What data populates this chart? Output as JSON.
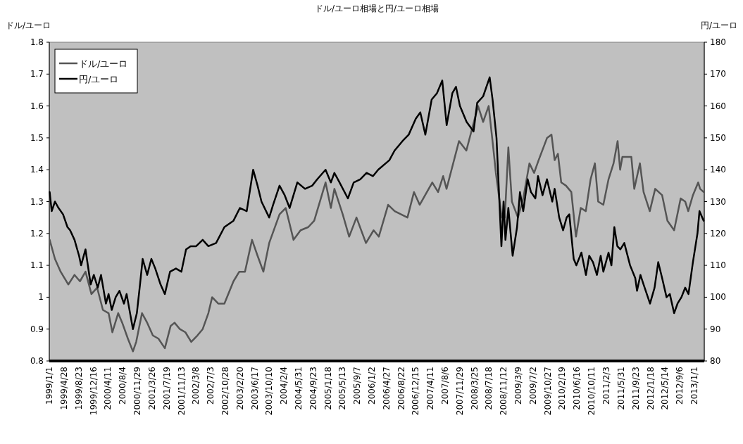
{
  "chart_data": {
    "type": "line",
    "title": "ドル/ユーロ相場と円/ユーロ相場",
    "ylabel": "ドル/ユーロ",
    "y2label": "円/ユーロ",
    "legend": "top left",
    "xlim": [
      "1999-01-01",
      "2013-03-20"
    ],
    "xticks": [
      {
        "value": "1999-01-01",
        "label": "1999/1/1"
      },
      {
        "value": "1999-04-28",
        "label": "1999/4/28"
      },
      {
        "value": "1999-08-23",
        "label": "1999/8/23"
      },
      {
        "value": "1999-12-16",
        "label": "1999/12/16"
      },
      {
        "value": "2000-04-11",
        "label": "2000/4/11"
      },
      {
        "value": "2000-08-04",
        "label": "2000/8/4"
      },
      {
        "value": "2000-11-29",
        "label": "2000/11/29"
      },
      {
        "value": "2001-03-26",
        "label": "2001/3/26"
      },
      {
        "value": "2001-07-19",
        "label": "2001/7/19"
      },
      {
        "value": "2001-11-13",
        "label": "2001/11/13"
      },
      {
        "value": "2002-03-08",
        "label": "2002/3/8"
      },
      {
        "value": "2002-07-03",
        "label": "2002/7/3"
      },
      {
        "value": "2002-10-28",
        "label": "2002/10/28"
      },
      {
        "value": "2003-02-20",
        "label": "2003/2/20"
      },
      {
        "value": "2003-06-17",
        "label": "2003/6/17"
      },
      {
        "value": "2003-10-10",
        "label": "2003/10/10"
      },
      {
        "value": "2004-02-04",
        "label": "2004/2/4"
      },
      {
        "value": "2004-05-31",
        "label": "2004/5/31"
      },
      {
        "value": "2004-09-23",
        "label": "2004/9/23"
      },
      {
        "value": "2005-01-18",
        "label": "2005/1/18"
      },
      {
        "value": "2005-05-13",
        "label": "2005/5/13"
      },
      {
        "value": "2005-09-07",
        "label": "2005/9/7"
      },
      {
        "value": "2006-01-02",
        "label": "2006/1/2"
      },
      {
        "value": "2006-04-27",
        "label": "2006/4/27"
      },
      {
        "value": "2006-08-22",
        "label": "2006/8/22"
      },
      {
        "value": "2006-12-15",
        "label": "2006/12/15"
      },
      {
        "value": "2007-04-11",
        "label": "2007/4/11"
      },
      {
        "value": "2007-08-06",
        "label": "2007/8/6"
      },
      {
        "value": "2007-11-29",
        "label": "2007/11/29"
      },
      {
        "value": "2008-03-25",
        "label": "2008/3/25"
      },
      {
        "value": "2008-07-18",
        "label": "2008/7/18"
      },
      {
        "value": "2008-11-12",
        "label": "2008/11/12"
      },
      {
        "value": "2009-03-09",
        "label": "2009/3/9"
      },
      {
        "value": "2009-07-02",
        "label": "2009/7/2"
      },
      {
        "value": "2009-10-27",
        "label": "2009/10/27"
      },
      {
        "value": "2010-02-19",
        "label": "2010/2/19"
      },
      {
        "value": "2010-06-16",
        "label": "2010/6/16"
      },
      {
        "value": "2010-10-11",
        "label": "2010/10/11"
      },
      {
        "value": "2011-02-03",
        "label": "2011/2/3"
      },
      {
        "value": "2011-05-31",
        "label": "2011/5/31"
      },
      {
        "value": "2011-09-23",
        "label": "2011/9/23"
      },
      {
        "value": "2012-01-18",
        "label": "2012/1/18"
      },
      {
        "value": "2012-05-14",
        "label": "2012/5/14"
      },
      {
        "value": "2012-09-06",
        "label": "2012/9/6"
      },
      {
        "value": "2013-01-01",
        "label": "2013/1/1"
      }
    ],
    "ylim": [
      0.8,
      1.8
    ],
    "yticks": [
      0.8,
      0.9,
      1,
      1.1,
      1.2,
      1.3,
      1.4,
      1.5,
      1.6,
      1.7,
      1.8
    ],
    "y2lim": [
      80,
      180
    ],
    "y2ticks": [
      80,
      90,
      100,
      110,
      120,
      130,
      140,
      150,
      160,
      170,
      180
    ],
    "series": [
      {
        "name": "ドル/ユーロ",
        "color": "#555555",
        "x": [
          "1999-01-04",
          "1999-02-15",
          "1999-04-01",
          "1999-06-01",
          "1999-07-20",
          "1999-09-01",
          "1999-10-15",
          "1999-12-01",
          "2000-01-15",
          "2000-03-01",
          "2000-04-15",
          "2000-05-15",
          "2000-06-30",
          "2000-08-01",
          "2000-09-15",
          "2000-10-25",
          "2000-11-20",
          "2001-01-05",
          "2001-02-15",
          "2001-04-01",
          "2001-05-15",
          "2001-07-05",
          "2001-08-20",
          "2001-09-20",
          "2001-11-01",
          "2001-12-15",
          "2002-01-30",
          "2002-03-20",
          "2002-05-01",
          "2002-06-15",
          "2002-07-15",
          "2002-09-01",
          "2002-10-20",
          "2002-12-31",
          "2003-02-15",
          "2003-04-01",
          "2003-05-27",
          "2003-07-10",
          "2003-08-25",
          "2003-10-10",
          "2003-12-31",
          "2004-02-18",
          "2004-04-20",
          "2004-06-15",
          "2004-08-15",
          "2004-10-01",
          "2004-12-30",
          "2005-02-10",
          "2005-03-10",
          "2005-05-15",
          "2005-07-05",
          "2005-09-01",
          "2005-11-15",
          "2006-01-15",
          "2006-02-25",
          "2006-05-10",
          "2006-07-01",
          "2006-10-10",
          "2006-12-01",
          "2007-01-15",
          "2007-04-25",
          "2007-06-10",
          "2007-07-20",
          "2007-08-16",
          "2007-11-23",
          "2008-01-20",
          "2008-04-22",
          "2008-06-01",
          "2008-07-15",
          "2008-08-20",
          "2008-09-10",
          "2008-10-27",
          "2008-11-20",
          "2008-12-18",
          "2009-01-15",
          "2009-03-04",
          "2009-04-15",
          "2009-06-03",
          "2009-07-10",
          "2009-08-15",
          "2009-10-21",
          "2009-11-25",
          "2009-12-20",
          "2010-01-15",
          "2010-02-10",
          "2010-03-20",
          "2010-05-01",
          "2010-06-07",
          "2010-07-15",
          "2010-08-24",
          "2010-10-01",
          "2010-11-04",
          "2010-11-30",
          "2011-01-10",
          "2011-02-20",
          "2011-04-01",
          "2011-05-03",
          "2011-05-23",
          "2011-06-10",
          "2011-07-05",
          "2011-08-20",
          "2011-09-12",
          "2011-10-27",
          "2011-11-25",
          "2012-01-13",
          "2012-02-25",
          "2012-04-20",
          "2012-06-01",
          "2012-07-24",
          "2012-09-14",
          "2012-10-20",
          "2012-11-13",
          "2012-12-20",
          "2013-01-31",
          "2013-02-15",
          "2013-03-15"
        ],
        "values": [
          1.18,
          1.12,
          1.08,
          1.04,
          1.07,
          1.05,
          1.08,
          1.01,
          1.03,
          0.96,
          0.95,
          0.89,
          0.95,
          0.92,
          0.87,
          0.83,
          0.86,
          0.95,
          0.92,
          0.88,
          0.87,
          0.84,
          0.91,
          0.92,
          0.9,
          0.89,
          0.86,
          0.88,
          0.9,
          0.95,
          1.0,
          0.98,
          0.98,
          1.05,
          1.08,
          1.08,
          1.18,
          1.13,
          1.08,
          1.17,
          1.26,
          1.28,
          1.18,
          1.21,
          1.22,
          1.24,
          1.36,
          1.28,
          1.34,
          1.26,
          1.19,
          1.25,
          1.17,
          1.21,
          1.19,
          1.29,
          1.27,
          1.25,
          1.33,
          1.29,
          1.36,
          1.33,
          1.38,
          1.34,
          1.49,
          1.46,
          1.6,
          1.55,
          1.6,
          1.47,
          1.39,
          1.25,
          1.25,
          1.47,
          1.3,
          1.25,
          1.31,
          1.42,
          1.39,
          1.43,
          1.5,
          1.51,
          1.43,
          1.45,
          1.36,
          1.35,
          1.33,
          1.19,
          1.28,
          1.27,
          1.37,
          1.42,
          1.3,
          1.29,
          1.37,
          1.42,
          1.49,
          1.4,
          1.44,
          1.44,
          1.44,
          1.34,
          1.42,
          1.33,
          1.27,
          1.34,
          1.32,
          1.24,
          1.21,
          1.31,
          1.3,
          1.27,
          1.32,
          1.36,
          1.34,
          1.33
        ]
      },
      {
        "name": "円/ユーロ",
        "color": "#000000",
        "axis": "y2",
        "x": [
          "1999-01-04",
          "1999-01-20",
          "1999-02-15",
          "1999-03-15",
          "1999-04-20",
          "1999-05-25",
          "1999-06-15",
          "1999-07-20",
          "1999-08-25",
          "1999-09-10",
          "1999-10-15",
          "1999-11-25",
          "1999-12-20",
          "2000-01-20",
          "2000-02-15",
          "2000-03-25",
          "2000-04-15",
          "2000-05-10",
          "2000-06-10",
          "2000-07-10",
          "2000-08-15",
          "2000-09-05",
          "2000-10-25",
          "2000-11-25",
          "2000-12-20",
          "2001-01-10",
          "2001-02-15",
          "2001-03-20",
          "2001-04-20",
          "2001-06-01",
          "2001-07-05",
          "2001-08-15",
          "2001-10-01",
          "2001-11-13",
          "2001-12-20",
          "2002-01-25",
          "2002-03-10",
          "2002-05-01",
          "2002-06-15",
          "2002-08-15",
          "2002-10-20",
          "2002-12-31",
          "2003-02-20",
          "2003-04-15",
          "2003-06-05",
          "2003-07-10",
          "2003-08-10",
          "2003-10-10",
          "2003-11-10",
          "2003-12-31",
          "2004-02-10",
          "2004-03-20",
          "2004-05-20",
          "2004-07-20",
          "2004-09-15",
          "2004-10-25",
          "2004-12-30",
          "2005-02-10",
          "2005-03-10",
          "2005-04-20",
          "2005-06-25",
          "2005-08-10",
          "2005-10-01",
          "2005-11-20",
          "2006-01-10",
          "2006-02-20",
          "2006-05-20",
          "2006-06-30",
          "2006-09-01",
          "2006-10-20",
          "2006-12-15",
          "2007-01-20",
          "2007-03-01",
          "2007-04-20",
          "2007-06-01",
          "2007-07-13",
          "2007-08-17",
          "2007-10-01",
          "2007-10-30",
          "2007-11-30",
          "2008-01-22",
          "2008-03-17",
          "2008-04-15",
          "2008-06-01",
          "2008-07-23",
          "2008-08-15",
          "2008-09-15",
          "2008-10-24",
          "2008-11-10",
          "2008-11-25",
          "2008-12-18",
          "2009-01-21",
          "2009-02-25",
          "2009-03-20",
          "2009-04-15",
          "2009-05-20",
          "2009-06-15",
          "2009-07-20",
          "2009-08-10",
          "2009-09-15",
          "2009-10-20",
          "2009-12-01",
          "2009-12-20",
          "2010-01-25",
          "2010-02-25",
          "2010-03-25",
          "2010-04-15",
          "2010-05-20",
          "2010-06-10",
          "2010-07-20",
          "2010-08-25",
          "2010-09-20",
          "2010-10-20",
          "2010-11-20",
          "2010-12-20",
          "2011-01-10",
          "2011-02-20",
          "2011-03-15",
          "2011-04-07",
          "2011-05-01",
          "2011-05-25",
          "2011-06-25",
          "2011-08-10",
          "2011-09-20",
          "2011-10-04",
          "2011-10-31",
          "2011-11-25",
          "2012-01-15",
          "2012-02-20",
          "2012-03-20",
          "2012-04-20",
          "2012-05-25",
          "2012-06-20",
          "2012-07-24",
          "2012-08-20",
          "2012-09-20",
          "2012-10-20",
          "2012-11-15",
          "2012-12-20",
          "2013-01-25",
          "2013-02-10",
          "2013-03-15"
        ],
        "values": [
          133,
          127,
          130,
          128,
          126,
          122,
          121,
          118,
          113,
          110,
          115,
          104,
          107,
          103,
          107,
          98,
          101,
          96,
          100,
          102,
          98,
          101,
          90,
          95,
          104,
          112,
          107,
          112,
          109,
          104,
          101,
          108,
          109,
          108,
          115,
          116,
          116,
          118,
          116,
          117,
          122,
          124,
          128,
          127,
          140,
          135,
          130,
          125,
          129,
          135,
          132,
          128,
          136,
          134,
          135,
          137,
          140,
          136,
          139,
          136,
          131,
          136,
          137,
          139,
          138,
          140,
          143,
          146,
          149,
          151,
          156,
          158,
          151,
          162,
          164,
          168,
          154,
          164,
          166,
          160,
          155,
          152,
          161,
          163,
          169,
          162,
          150,
          116,
          130,
          118,
          128,
          113,
          122,
          133,
          127,
          137,
          133,
          131,
          138,
          132,
          137,
          130,
          134,
          125,
          121,
          125,
          126,
          112,
          110,
          114,
          107,
          113,
          111,
          107,
          113,
          108,
          114,
          110,
          122,
          116,
          115,
          117,
          110,
          106,
          102,
          107,
          104,
          98,
          103,
          111,
          106,
          100,
          101,
          95,
          98,
          100,
          103,
          101,
          111,
          120,
          127,
          124
        ]
      }
    ]
  }
}
